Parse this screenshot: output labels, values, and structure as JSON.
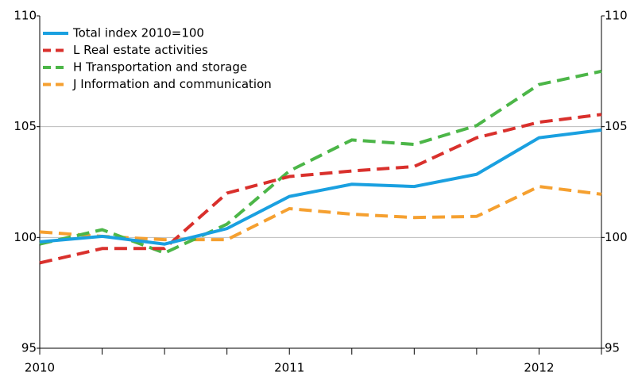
{
  "chart_data": {
    "type": "line",
    "categories": [
      "2010",
      null,
      null,
      null,
      "2011",
      null,
      null,
      null,
      "2012",
      null
    ],
    "series": [
      {
        "name": "Total index 2010=100",
        "color": "#1aa0e0",
        "dashed": false,
        "values": [
          99.8,
          100.05,
          99.7,
          100.4,
          101.85,
          102.4,
          102.3,
          102.85,
          104.5,
          104.85
        ]
      },
      {
        "name": "L Real estate activities",
        "color": "#d9302c",
        "dashed": true,
        "values": [
          98.85,
          99.5,
          99.5,
          102.0,
          102.75,
          103.0,
          103.2,
          104.5,
          105.2,
          105.55
        ]
      },
      {
        "name": "H Transportation and storage",
        "color": "#4cb648",
        "dashed": true,
        "values": [
          99.7,
          100.35,
          99.3,
          100.6,
          103.0,
          104.4,
          104.2,
          105.05,
          106.9,
          107.5
        ]
      },
      {
        "name": "J Information and communication",
        "color": "#f5a030",
        "dashed": true,
        "values": [
          100.25,
          100.05,
          99.9,
          99.9,
          101.3,
          101.05,
          100.9,
          100.95,
          102.3,
          101.95
        ]
      }
    ],
    "ylim": [
      95,
      110
    ],
    "yticks": [
      95,
      100,
      105,
      110
    ],
    "y2lim": [
      95,
      110
    ],
    "y2ticks": [
      95,
      100,
      105,
      110
    ],
    "grid": true,
    "legend": "top-left"
  }
}
